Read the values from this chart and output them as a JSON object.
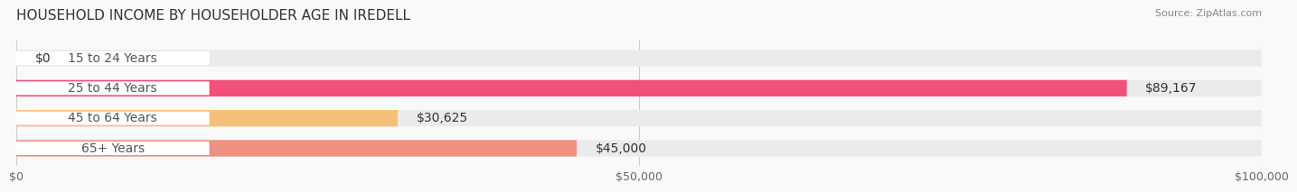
{
  "title": "HOUSEHOLD INCOME BY HOUSEHOLDER AGE IN IREDELL",
  "source": "Source: ZipAtlas.com",
  "categories": [
    "15 to 24 Years",
    "25 to 44 Years",
    "45 to 64 Years",
    "65+ Years"
  ],
  "values": [
    0,
    89167,
    30625,
    45000
  ],
  "bar_colors": [
    "#9b9fd4",
    "#f0507a",
    "#f5c07a",
    "#f09080"
  ],
  "label_colors": [
    "#9b9fd4",
    "#f0507a",
    "#f5c07a",
    "#f09080"
  ],
  "track_color": "#ebebeb",
  "label_text_color": "#555555",
  "value_labels": [
    "$0",
    "$89,167",
    "$30,625",
    "$45,000"
  ],
  "xlim": [
    0,
    100000
  ],
  "xticks": [
    0,
    50000,
    100000
  ],
  "xticklabels": [
    "$0",
    "$50,000",
    "$100,000"
  ],
  "bar_height": 0.55,
  "background_color": "#f9f9f9",
  "title_fontsize": 11,
  "tick_fontsize": 9,
  "label_fontsize": 10
}
